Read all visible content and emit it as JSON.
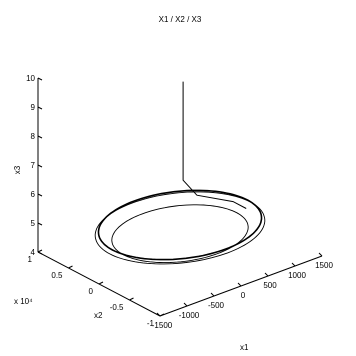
{
  "chart_data": {
    "type": "line",
    "projection": "3d",
    "title": "X1 / X2 / X3",
    "xlabel": "x1",
    "ylabel": "x2",
    "zlabel": "x3",
    "xlim": [
      -1500,
      1500
    ],
    "ylim": [
      -1,
      1
    ],
    "zlim": [
      4,
      10
    ],
    "x_ticks": [
      "-1500",
      "-1000",
      "-500",
      "0",
      "500",
      "1000",
      "1500"
    ],
    "y_ticks": [
      "-1",
      "-0.5",
      "0",
      "0.5",
      "1"
    ],
    "z_ticks": [
      "4",
      "5",
      "6",
      "7",
      "8",
      "9",
      "10"
    ],
    "y_scale_label": "x 10⁴",
    "grid": false,
    "series": [
      {
        "description_points": [
          {
            "x1": 0,
            "x2": -0.05,
            "x3": 10
          },
          {
            "x1": 0,
            "x2": -0.05,
            "x3": 8.0
          },
          {
            "x1": 0,
            "x2": -0.05,
            "x3": 6.6
          },
          {
            "x1": 200,
            "x2": -0.1,
            "x3": 6.0
          },
          {
            "x1": 700,
            "x2": -0.25,
            "x3": 5.6
          },
          {
            "x1": 1000,
            "x2": -0.2,
            "x3": 5.1
          }
        ],
        "orbits": [
          {
            "cx1": 0,
            "cx2": 0,
            "x3": 5.0,
            "rx1": 1250,
            "rx2": 0.75
          },
          {
            "cx1": 0,
            "cx2": 0,
            "x3": 4.9,
            "rx1": 1300,
            "rx2": 0.78
          },
          {
            "cx1": 0,
            "cx2": 0,
            "x3": 4.7,
            "rx1": 1050,
            "rx2": 0.62
          }
        ]
      }
    ]
  }
}
